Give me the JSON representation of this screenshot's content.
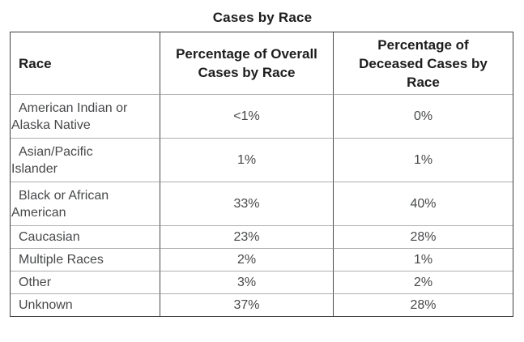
{
  "title": "Cases by Race",
  "table": {
    "columns": [
      {
        "label": "Race"
      },
      {
        "label": "Percentage of Overall\nCases by Race"
      },
      {
        "label": "Percentage of\nDeceased Cases by\nRace"
      }
    ],
    "rows": [
      {
        "race": "American Indian or\nAlaska Native",
        "overall": "<1%",
        "deceased": "0%"
      },
      {
        "race": "Asian/Pacific\nIslander",
        "overall": "1%",
        "deceased": "1%"
      },
      {
        "race": "Black or African\nAmerican",
        "overall": "33%",
        "deceased": "40%"
      },
      {
        "race": "Caucasian",
        "overall": "23%",
        "deceased": "28%"
      },
      {
        "race": "Multiple Races",
        "overall": "2%",
        "deceased": "1%"
      },
      {
        "race": "Other",
        "overall": "3%",
        "deceased": "2%"
      },
      {
        "race": "Unknown",
        "overall": "37%",
        "deceased": "28%"
      }
    ]
  },
  "colors": {
    "outer_border": "#3f3f3f",
    "vertical_divider": "#4a4a4a",
    "horizontal_divider": "#aeaeae",
    "header_text": "#1d1d1f",
    "body_text": "#47484a",
    "background": "#ffffff"
  },
  "chart_data": {
    "type": "table",
    "title": "Cases by Race",
    "columns": [
      "Race",
      "Percentage of Overall Cases by Race",
      "Percentage of Deceased Cases by Race"
    ],
    "categories": [
      "American Indian or Alaska Native",
      "Asian/Pacific Islander",
      "Black or African American",
      "Caucasian",
      "Multiple Races",
      "Other",
      "Unknown"
    ],
    "series": [
      {
        "name": "Percentage of Overall Cases by Race",
        "values": [
          "<1%",
          "1%",
          "33%",
          "23%",
          "2%",
          "3%",
          "37%"
        ]
      },
      {
        "name": "Percentage of Deceased Cases by Race",
        "values": [
          "0%",
          "1%",
          "40%",
          "28%",
          "1%",
          "2%",
          "28%"
        ]
      }
    ],
    "legend_position": "none",
    "grid": true
  }
}
